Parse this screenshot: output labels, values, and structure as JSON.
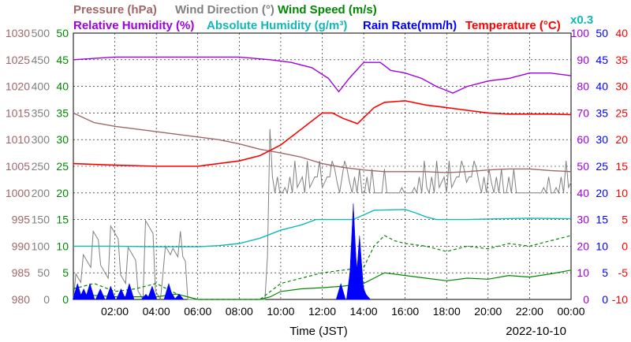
{
  "chart_data": {
    "type": "line",
    "date": "2022-10-10",
    "x_label": "Time (JST)",
    "x_range_hours": [
      0,
      24
    ],
    "x_ticks": [
      "02:00",
      "04:00",
      "06:00",
      "08:00",
      "10:00",
      "12:00",
      "14:00",
      "16:00",
      "18:00",
      "20:00",
      "22:00",
      "00:00"
    ],
    "grid": true,
    "legend_titles": {
      "pressure": "Pressure (hPa)",
      "wind_dir": "Wind Direction (°)",
      "wind_speed": "Wind Speed (m/s)",
      "humidity": "Relative Humidity (%)",
      "abs_humidity": "Absolute Humidity (g/m³)",
      "rain": "Rain Rate(mm/h)",
      "temperature": "Temperature (°C)",
      "x03": "x0.3"
    },
    "axes": {
      "pressure": {
        "ticks": [
          "1030",
          "1025",
          "1020",
          "1015",
          "1010",
          "1005",
          "1000",
          "995",
          "990",
          "985",
          "980"
        ],
        "range": [
          980,
          1030
        ],
        "color": "#a0666a"
      },
      "wind_dir": {
        "ticks": [
          "500",
          "450",
          "400",
          "350",
          "300",
          "250",
          "200",
          "150",
          "100",
          "50",
          "0"
        ],
        "range": [
          0,
          500
        ],
        "color": "#808080"
      },
      "wind_speed": {
        "ticks": [
          "50",
          "45",
          "40",
          "35",
          "30",
          "25",
          "20",
          "15",
          "10",
          "5",
          "0"
        ],
        "range": [
          0,
          50
        ],
        "color": "#008800"
      },
      "humidity": {
        "ticks": [
          "100",
          "90",
          "80",
          "70",
          "60",
          "50",
          "40",
          "30",
          "20",
          "10",
          "0"
        ],
        "range": [
          0,
          100
        ],
        "color": "#a000e0"
      },
      "rain": {
        "ticks": [
          "50",
          "45",
          "40",
          "35",
          "30",
          "25",
          "20",
          "15",
          "10",
          "5",
          "0"
        ],
        "range": [
          0,
          50
        ],
        "color": "#0000ff"
      },
      "temperature": {
        "ticks": [
          "40",
          "35",
          "30",
          "25",
          "20",
          "15",
          "10",
          "5",
          "0",
          "-5",
          "-10"
        ],
        "range": [
          -10,
          40
        ],
        "color": "#ff0000"
      }
    },
    "series": [
      {
        "name": "Relative Humidity (%)",
        "color": "#a000e0",
        "points": [
          [
            0,
            90
          ],
          [
            2,
            91
          ],
          [
            4,
            91
          ],
          [
            6,
            91
          ],
          [
            8,
            91
          ],
          [
            9.5,
            90
          ],
          [
            10.5,
            89
          ],
          [
            11.5,
            87
          ],
          [
            12.3,
            83
          ],
          [
            12.8,
            78
          ],
          [
            13.3,
            83
          ],
          [
            14,
            89
          ],
          [
            14.8,
            89
          ],
          [
            15.3,
            86
          ],
          [
            16,
            85
          ],
          [
            16.8,
            83
          ],
          [
            17.5,
            80
          ],
          [
            18.3,
            77.5
          ],
          [
            19,
            80
          ],
          [
            20,
            82
          ],
          [
            21,
            83
          ],
          [
            22,
            85
          ],
          [
            23,
            85
          ],
          [
            24,
            84
          ]
        ]
      },
      {
        "name": "Temperature (°C)",
        "color": "#ff0000",
        "points": [
          [
            0,
            15.5
          ],
          [
            2,
            15.2
          ],
          [
            4,
            15
          ],
          [
            5,
            15
          ],
          [
            6,
            15
          ],
          [
            7,
            15.5
          ],
          [
            8,
            16
          ],
          [
            9,
            17
          ],
          [
            10,
            19
          ],
          [
            11,
            22
          ],
          [
            12,
            25
          ],
          [
            12.5,
            25
          ],
          [
            13,
            24
          ],
          [
            13.7,
            23
          ],
          [
            14.5,
            26
          ],
          [
            15,
            27
          ],
          [
            16,
            27.3
          ],
          [
            17,
            26.5
          ],
          [
            18,
            26
          ],
          [
            19,
            25.5
          ],
          [
            20,
            25
          ],
          [
            21,
            24.8
          ],
          [
            22,
            24.8
          ],
          [
            23,
            24.8
          ],
          [
            24,
            24.7
          ]
        ]
      },
      {
        "name": "Absolute Humidity (g/m³)",
        "color": "#10b8b8",
        "points": [
          [
            0,
            20
          ],
          [
            2,
            20
          ],
          [
            4,
            19.8
          ],
          [
            6,
            19.8
          ],
          [
            7,
            20.2
          ],
          [
            8,
            21
          ],
          [
            9,
            23
          ],
          [
            10,
            26
          ],
          [
            11,
            28
          ],
          [
            11.7,
            30
          ],
          [
            12.5,
            30
          ],
          [
            13.5,
            30
          ],
          [
            14.5,
            33.5
          ],
          [
            16,
            33.8
          ],
          [
            16.5,
            32.5
          ],
          [
            17,
            31
          ],
          [
            17.5,
            30
          ],
          [
            18,
            30
          ],
          [
            19,
            30
          ],
          [
            20,
            30.2
          ],
          [
            22,
            30.5
          ],
          [
            24,
            30.3
          ]
        ]
      },
      {
        "name": "Pressure (hPa)",
        "color": "#a0666a",
        "points": [
          [
            0,
            1015
          ],
          [
            1,
            1013.2
          ],
          [
            2,
            1012.5
          ],
          [
            3,
            1012
          ],
          [
            4,
            1011.5
          ],
          [
            5,
            1011
          ],
          [
            6,
            1010.5
          ],
          [
            7,
            1010
          ],
          [
            8,
            1009.2
          ],
          [
            9,
            1008.2
          ],
          [
            10,
            1007.5
          ],
          [
            11,
            1006.7
          ],
          [
            12,
            1005.5
          ],
          [
            13,
            1004.8
          ],
          [
            14,
            1004.3
          ],
          [
            15,
            1004
          ],
          [
            16,
            1004
          ],
          [
            17,
            1004
          ],
          [
            18,
            1003.8
          ],
          [
            19,
            1004
          ],
          [
            20,
            1004.3
          ],
          [
            21,
            1004.5
          ],
          [
            22,
            1004.5
          ],
          [
            23,
            1004.2
          ],
          [
            24,
            1004
          ]
        ]
      },
      {
        "name": "Wind Speed (m/s) avg",
        "color": "#008800",
        "points": [
          [
            0,
            1
          ],
          [
            2,
            0.5
          ],
          [
            4,
            0.5
          ],
          [
            5,
            1
          ],
          [
            6,
            0
          ],
          [
            8,
            0
          ],
          [
            9,
            0
          ],
          [
            9.5,
            0.5
          ],
          [
            10,
            1.5
          ],
          [
            11,
            2
          ],
          [
            12,
            2.2
          ],
          [
            13,
            2.5
          ],
          [
            14,
            3
          ],
          [
            14.5,
            4
          ],
          [
            15,
            5
          ],
          [
            16,
            4.5
          ],
          [
            17,
            4
          ],
          [
            18,
            3.5
          ],
          [
            19,
            4
          ],
          [
            20,
            3.8
          ],
          [
            21,
            4.5
          ],
          [
            22,
            4.2
          ],
          [
            23,
            4.8
          ],
          [
            24,
            5.5
          ]
        ]
      },
      {
        "name": "Wind Speed (m/s) gust",
        "color": "#008800",
        "points": [
          [
            0,
            2
          ],
          [
            1,
            3
          ],
          [
            2,
            1.5
          ],
          [
            3,
            2
          ],
          [
            4,
            3
          ],
          [
            5,
            1
          ],
          [
            6,
            0
          ],
          [
            8,
            0
          ],
          [
            9,
            0
          ],
          [
            9.5,
            1.5
          ],
          [
            10,
            3
          ],
          [
            11,
            4
          ],
          [
            12,
            5
          ],
          [
            13,
            5.5
          ],
          [
            14,
            6
          ],
          [
            14.5,
            10
          ],
          [
            15,
            12
          ],
          [
            15.5,
            11
          ],
          [
            16,
            10.5
          ],
          [
            17,
            10
          ],
          [
            18,
            9
          ],
          [
            19,
            10
          ],
          [
            20,
            9.5
          ],
          [
            21,
            10.5
          ],
          [
            22,
            10
          ],
          [
            23,
            11
          ],
          [
            24,
            12
          ]
        ]
      }
    ],
    "wind_direction_approx": "scattered 0-150° before ~9:30, then mostly 200-230° with spikes",
    "rain_events": [
      [
        0.2,
        3
      ],
      [
        0.5,
        2
      ],
      [
        0.8,
        3
      ],
      [
        1.3,
        2
      ],
      [
        1.8,
        2.5
      ],
      [
        2.3,
        2
      ],
      [
        2.7,
        3
      ],
      [
        3.5,
        1
      ],
      [
        3.8,
        2.5
      ],
      [
        4.6,
        3
      ],
      [
        4.7,
        1.5
      ],
      [
        5.1,
        1
      ],
      [
        12.9,
        3
      ],
      [
        13.4,
        7
      ],
      [
        13.5,
        18
      ],
      [
        13.6,
        9
      ],
      [
        13.7,
        6
      ],
      [
        13.8,
        12
      ],
      [
        13.9,
        4
      ],
      [
        14.0,
        2
      ],
      [
        14.1,
        1
      ]
    ]
  }
}
